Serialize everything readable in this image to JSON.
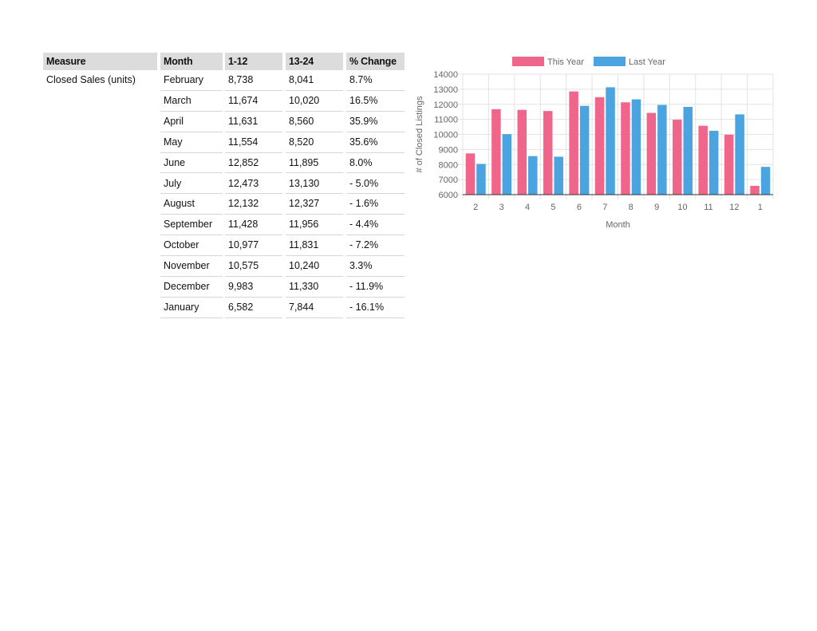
{
  "table": {
    "headers": [
      "Measure",
      "Month",
      "1-12",
      "13-24",
      "% Change"
    ],
    "measure": "Closed Sales (units)",
    "rows": [
      [
        "February",
        "8,738",
        "8,041",
        "8.7%"
      ],
      [
        "March",
        "11,674",
        "10,020",
        "16.5%"
      ],
      [
        "April",
        "11,631",
        "8,560",
        "35.9%"
      ],
      [
        "May",
        "11,554",
        "8,520",
        "35.6%"
      ],
      [
        "June",
        "12,852",
        "11,895",
        "8.0%"
      ],
      [
        "July",
        "12,473",
        "13,130",
        "- 5.0%"
      ],
      [
        "August",
        "12,132",
        "12,327",
        "- 1.6%"
      ],
      [
        "September",
        "11,428",
        "11,956",
        "- 4.4%"
      ],
      [
        "October",
        "10,977",
        "11,831",
        "- 7.2%"
      ],
      [
        "November",
        "10,575",
        "10,240",
        "3.3%"
      ],
      [
        "December",
        "9,983",
        "11,330",
        "- 11.9%"
      ],
      [
        "January",
        "6,582",
        "7,844",
        "- 16.1%"
      ]
    ]
  },
  "chart_data": {
    "type": "bar",
    "categories": [
      "2",
      "3",
      "4",
      "5",
      "6",
      "7",
      "8",
      "9",
      "10",
      "11",
      "12",
      "1"
    ],
    "series": [
      {
        "name": "This Year",
        "color": "#f0658a",
        "values": [
          8738,
          11674,
          11631,
          11554,
          12852,
          12473,
          12132,
          11428,
          10977,
          10575,
          9983,
          6582
        ]
      },
      {
        "name": "Last Year",
        "color": "#4ba3df",
        "values": [
          8041,
          10020,
          8560,
          8520,
          11895,
          13130,
          12327,
          11956,
          11831,
          10240,
          11330,
          7844
        ]
      }
    ],
    "xlabel": "Month",
    "ylabel": "# of Closed Listings",
    "ylim": [
      6000,
      14000
    ],
    "yticks": [
      6000,
      7000,
      8000,
      9000,
      10000,
      11000,
      12000,
      13000,
      14000
    ],
    "grid": true,
    "legend": "top"
  }
}
